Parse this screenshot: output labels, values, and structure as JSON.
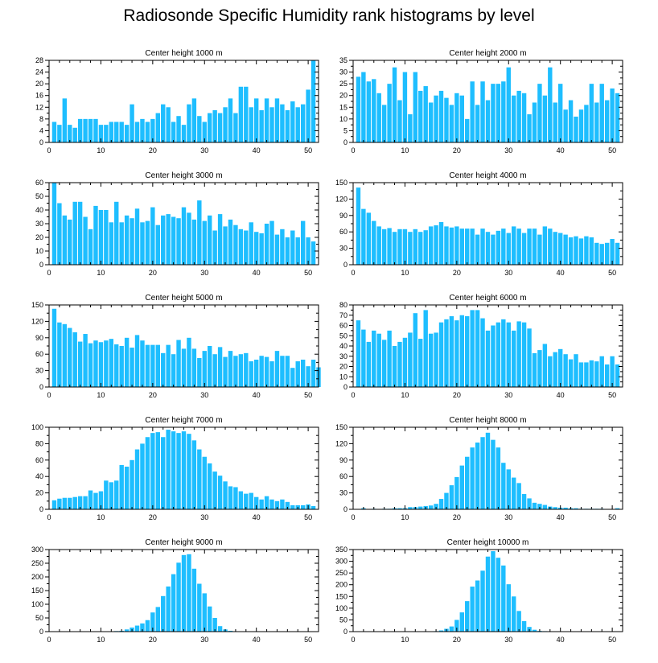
{
  "title": "Radiosonde Specific Humidity rank histograms by level",
  "bar_color": "#1ebeff",
  "chart_data": [
    {
      "type": "bar",
      "title": "Center height 1000 m",
      "xlim": [
        0,
        52
      ],
      "ylim": [
        0,
        28
      ],
      "xticks": [
        0,
        10,
        20,
        30,
        40,
        50
      ],
      "yticks": [
        0,
        4,
        8,
        12,
        16,
        20,
        24,
        28
      ],
      "values": [
        7,
        6,
        15,
        6,
        5,
        8,
        8,
        8,
        8,
        6,
        6,
        7,
        7,
        7,
        6,
        13,
        7,
        8,
        7,
        8,
        10,
        13,
        12,
        7,
        9,
        6,
        13,
        15,
        9,
        7,
        10,
        11,
        10,
        12,
        15,
        10,
        19,
        19,
        12,
        15,
        11,
        15,
        12,
        15,
        13,
        11,
        14,
        12,
        13,
        18,
        28
      ]
    },
    {
      "type": "bar",
      "title": "Center height 2000 m",
      "xlim": [
        0,
        52
      ],
      "ylim": [
        0,
        35
      ],
      "xticks": [
        0,
        10,
        20,
        30,
        40,
        50
      ],
      "yticks": [
        0,
        5,
        10,
        15,
        20,
        25,
        30,
        35
      ],
      "values": [
        28,
        30,
        26,
        27,
        21,
        16,
        25,
        32,
        18,
        30,
        12,
        30,
        22,
        24,
        17,
        20,
        22,
        19,
        16,
        21,
        20,
        10,
        26,
        16,
        26,
        18,
        25,
        25,
        26,
        32,
        20,
        22,
        21,
        12,
        17,
        25,
        20,
        32,
        17,
        25,
        14,
        18,
        11,
        14,
        16,
        25,
        17,
        25,
        18,
        23,
        21
      ]
    },
    {
      "type": "bar",
      "title": "Center height 3000 m",
      "xlim": [
        0,
        52
      ],
      "ylim": [
        0,
        60
      ],
      "xticks": [
        0,
        10,
        20,
        30,
        40,
        50
      ],
      "yticks": [
        0,
        10,
        20,
        30,
        40,
        50,
        60
      ],
      "values": [
        60,
        45,
        36,
        33,
        46,
        46,
        35,
        26,
        43,
        40,
        40,
        31,
        46,
        31,
        36,
        34,
        41,
        31,
        32,
        42,
        29,
        36,
        37,
        35,
        34,
        42,
        38,
        33,
        47,
        32,
        36,
        25,
        37,
        28,
        33,
        29,
        26,
        25,
        31,
        24,
        23,
        30,
        32,
        22,
        26,
        20,
        25,
        20,
        32,
        20,
        17
      ]
    },
    {
      "type": "bar",
      "title": "Center height 4000 m",
      "xlim": [
        0,
        52
      ],
      "ylim": [
        0,
        150
      ],
      "xticks": [
        0,
        10,
        20,
        30,
        40,
        50
      ],
      "yticks": [
        0,
        30,
        60,
        90,
        120,
        150
      ],
      "values": [
        141,
        102,
        95,
        80,
        70,
        65,
        67,
        60,
        65,
        65,
        60,
        65,
        60,
        63,
        70,
        72,
        78,
        70,
        68,
        70,
        66,
        66,
        66,
        55,
        66,
        60,
        55,
        62,
        66,
        58,
        70,
        66,
        58,
        66,
        66,
        55,
        70,
        66,
        60,
        58,
        55,
        50,
        52,
        48,
        52,
        50,
        40,
        38,
        40,
        47,
        40
      ]
    },
    {
      "type": "bar",
      "title": "Center height 5000 m",
      "xlim": [
        0,
        52
      ],
      "ylim": [
        0,
        150
      ],
      "xticks": [
        0,
        10,
        20,
        30,
        40,
        50
      ],
      "yticks": [
        0,
        30,
        60,
        90,
        120,
        150
      ],
      "values": [
        143,
        118,
        115,
        108,
        100,
        83,
        97,
        80,
        85,
        82,
        85,
        88,
        78,
        75,
        90,
        72,
        95,
        85,
        77,
        77,
        77,
        62,
        77,
        60,
        86,
        70,
        90,
        70,
        53,
        66,
        75,
        60,
        73,
        55,
        66,
        57,
        60,
        62,
        47,
        50,
        57,
        55,
        47,
        66,
        57,
        57,
        35,
        47,
        50,
        38,
        50,
        36
      ]
    },
    {
      "type": "bar",
      "title": "Center height 6000 m",
      "xlim": [
        0,
        52
      ],
      "ylim": [
        0,
        80
      ],
      "xticks": [
        0,
        10,
        20,
        30,
        40,
        50
      ],
      "yticks": [
        0,
        10,
        20,
        30,
        40,
        50,
        60,
        70,
        80
      ],
      "values": [
        65,
        56,
        44,
        55,
        52,
        46,
        55,
        40,
        44,
        48,
        53,
        72,
        47,
        75,
        52,
        53,
        63,
        66,
        69,
        65,
        70,
        69,
        75,
        75,
        67,
        55,
        60,
        63,
        66,
        63,
        55,
        64,
        63,
        57,
        33,
        36,
        42,
        30,
        34,
        37,
        32,
        27,
        32,
        24,
        24,
        26,
        25,
        30,
        22,
        30,
        22
      ]
    },
    {
      "type": "bar",
      "title": "Center height 7000 m",
      "xlim": [
        0,
        52
      ],
      "ylim": [
        0,
        100
      ],
      "xticks": [
        0,
        10,
        20,
        30,
        40,
        50
      ],
      "yticks": [
        0,
        20,
        40,
        60,
        80,
        100
      ],
      "values": [
        11,
        13,
        14,
        14,
        15,
        16,
        16,
        23,
        20,
        22,
        35,
        33,
        35,
        54,
        52,
        60,
        73,
        80,
        88,
        93,
        94,
        88,
        97,
        95,
        93,
        95,
        92,
        84,
        73,
        64,
        56,
        46,
        41,
        34,
        28,
        27,
        22,
        19,
        20,
        15,
        12,
        16,
        12,
        10,
        12,
        9,
        5,
        5,
        5,
        6,
        4
      ]
    },
    {
      "type": "bar",
      "title": "Center height 8000 m",
      "xlim": [
        0,
        52
      ],
      "ylim": [
        0,
        150
      ],
      "xticks": [
        0,
        10,
        20,
        30,
        40,
        50
      ],
      "yticks": [
        0,
        30,
        60,
        90,
        120,
        150
      ],
      "values": [
        0,
        2,
        0,
        1,
        0,
        1,
        1,
        2,
        2,
        2,
        4,
        4,
        5,
        6,
        7,
        10,
        19,
        30,
        44,
        59,
        80,
        96,
        113,
        122,
        132,
        140,
        127,
        113,
        85,
        73,
        58,
        48,
        28,
        20,
        12,
        10,
        8,
        5,
        4,
        3,
        3,
        2,
        2,
        1,
        1,
        1,
        1,
        1,
        0,
        0,
        2
      ]
    },
    {
      "type": "bar",
      "title": "Center height 9000 m",
      "xlim": [
        0,
        52
      ],
      "ylim": [
        0,
        300
      ],
      "xticks": [
        0,
        10,
        20,
        30,
        40,
        50
      ],
      "yticks": [
        0,
        50,
        100,
        150,
        200,
        250,
        300
      ],
      "values": [
        0,
        0,
        0,
        0,
        0,
        0,
        0,
        0,
        0,
        0,
        0,
        0,
        2,
        3,
        8,
        15,
        22,
        30,
        42,
        70,
        90,
        130,
        165,
        210,
        252,
        280,
        283,
        230,
        175,
        140,
        92,
        50,
        20,
        8,
        3,
        1,
        1,
        0,
        1,
        0,
        0,
        0,
        0,
        0,
        0,
        0,
        0,
        0,
        0,
        0,
        0
      ]
    },
    {
      "type": "bar",
      "title": "Center height 10000 m",
      "xlim": [
        0,
        52
      ],
      "ylim": [
        0,
        350
      ],
      "xticks": [
        0,
        10,
        20,
        30,
        40,
        50
      ],
      "yticks": [
        0,
        50,
        100,
        150,
        200,
        250,
        300,
        350
      ],
      "values": [
        0,
        0,
        0,
        0,
        0,
        0,
        0,
        0,
        0,
        0,
        0,
        0,
        0,
        0,
        0,
        2,
        5,
        12,
        22,
        50,
        82,
        130,
        192,
        218,
        260,
        320,
        343,
        315,
        282,
        202,
        150,
        88,
        45,
        20,
        8,
        3,
        2,
        1,
        1,
        0,
        0,
        0,
        0,
        0,
        0,
        0,
        0,
        0,
        0,
        0,
        0
      ]
    }
  ]
}
